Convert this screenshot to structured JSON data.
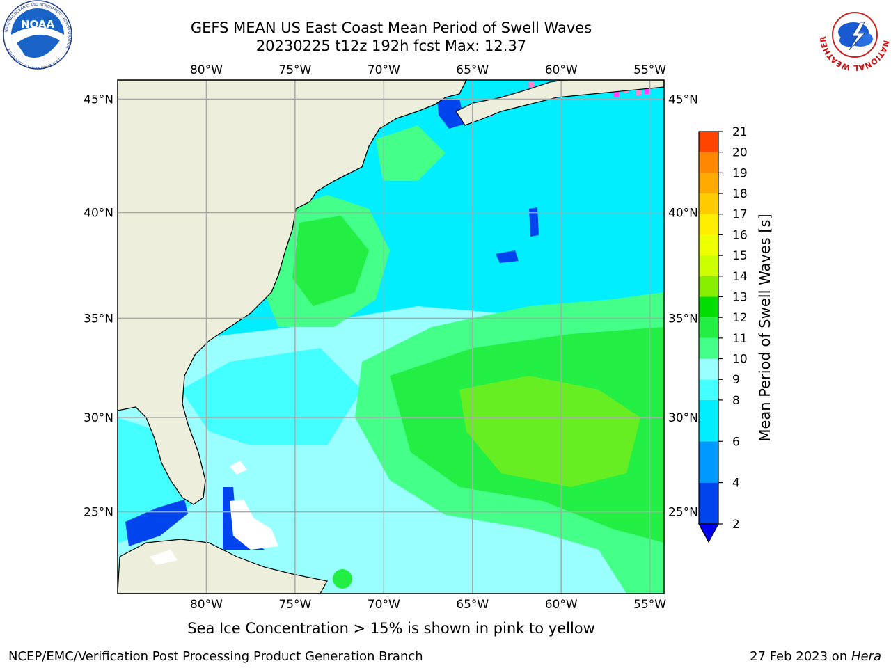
{
  "header": {
    "title_line1": "GEFS MEAN US East Coast Mean Period of Swell Waves",
    "title_line2": "20230225 t12z 192h fcst   Max: 12.37"
  },
  "logos": {
    "left": {
      "name": "NOAA",
      "ring_text": "NATIONAL OCEANIC AND ATMOSPHERIC ADMINISTRATION",
      "ring_text_bottom": "U.S. DEPARTMENT OF COMMERCE",
      "center_text": "NOAA"
    },
    "right": {
      "name": "National Weather Service",
      "ring_text": "NATIONAL WEATHER SERVICE"
    }
  },
  "map": {
    "lon_ticks": [
      "80°W",
      "75°W",
      "70°W",
      "65°W",
      "60°W",
      "55°W"
    ],
    "lon_values": [
      -80,
      -75,
      -70,
      -65,
      -60,
      -55
    ],
    "lat_ticks": [
      "45°N",
      "40°N",
      "35°N",
      "30°N",
      "25°N"
    ],
    "lat_values": [
      45,
      40,
      35,
      30,
      25
    ],
    "lon_range": [
      -85,
      -54.2
    ],
    "lat_range": [
      20.5,
      45.8
    ],
    "gridlines": true,
    "land_color": "#eeeedc",
    "ice_colors": [
      "#ff44ff",
      "#ff88cc",
      "#ffdd33"
    ]
  },
  "colorbar": {
    "label": "Mean Period of Swell Waves [s]",
    "ticks": [
      "2",
      "4",
      "6",
      "8",
      "9",
      "10",
      "11",
      "12",
      "13",
      "14",
      "15",
      "16",
      "17",
      "18",
      "19",
      "20",
      "21"
    ],
    "values": [
      2,
      4,
      6,
      8,
      9,
      10,
      11,
      12,
      13,
      14,
      15,
      16,
      17,
      18,
      19,
      20,
      21
    ],
    "colors": [
      "#0044ee",
      "#0099ff",
      "#00eeff",
      "#44ffff",
      "#99ffff",
      "#44ff88",
      "#22ee44",
      "#00dd00",
      "#88ee00",
      "#ccff00",
      "#eeff00",
      "#ffee00",
      "#ffcc00",
      "#ffaa00",
      "#ff8800",
      "#ff4400",
      "#ff0000"
    ],
    "extend_min_color": "#0000ee",
    "extend": "min"
  },
  "footer": {
    "ice_note": "Sea Ice Concentration > 15% is shown in pink to yellow",
    "credit_left": "NCEP/EMC/Verification Post Processing Product Generation Branch",
    "credit_right_date": "27 Feb 2023 on ",
    "credit_right_host": "Hera"
  }
}
